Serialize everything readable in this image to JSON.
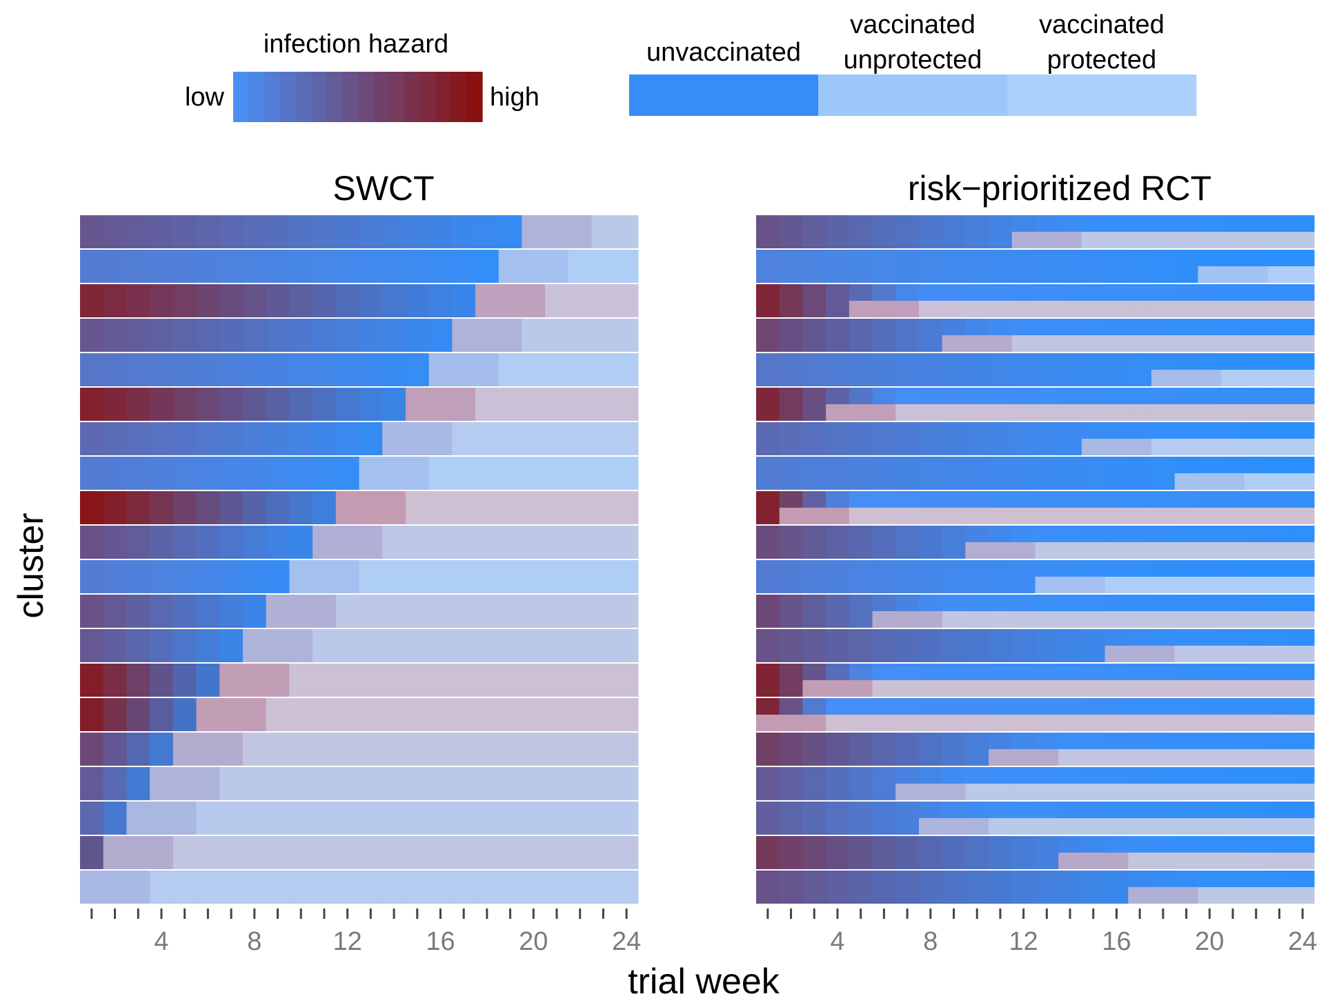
{
  "legend": {
    "hazard_title": "infection hazard",
    "hazard_low": "low",
    "hazard_high": "high",
    "status_labels": [
      [
        "unvaccinated"
      ],
      [
        "vaccinated",
        "unprotected"
      ],
      [
        "vaccinated",
        "protected"
      ]
    ]
  },
  "axis": {
    "xlabel": "trial week",
    "ylabel": "cluster"
  },
  "colors": {
    "hazard_low": "#4A8EF4",
    "hazard_high": "#8A1010",
    "unvaccinated": "#378DF7",
    "vaccinated_unprotected": "#9DC6FA",
    "vaccinated_protected": "#AAD0FB"
  },
  "chart_data": [
    {
      "type": "heatmap",
      "title": "SWCT",
      "xlabel": "trial week",
      "ylabel": "cluster",
      "xlim": [
        1,
        24
      ],
      "xticks": [
        4,
        8,
        12,
        16,
        20,
        24
      ],
      "vaccination_week_by_cluster": [
        19,
        18,
        17,
        16,
        15,
        14,
        13,
        12,
        11,
        10,
        9,
        8,
        7,
        6,
        5,
        4,
        3,
        2,
        1,
        0
      ],
      "initial_hazard_by_cluster": [
        0.45,
        0.15,
        0.85,
        0.45,
        0.2,
        0.9,
        0.3,
        0.15,
        1.0,
        0.5,
        0.15,
        0.5,
        0.45,
        0.95,
        0.95,
        0.6,
        0.45,
        0.35,
        0.6,
        0.3
      ]
    },
    {
      "type": "heatmap",
      "title": "risk−prioritized RCT",
      "xlabel": "trial week",
      "ylabel": "cluster",
      "xlim": [
        1,
        24
      ],
      "xticks": [
        4,
        8,
        12,
        16,
        20,
        24
      ],
      "vaccination_week_by_cluster": [
        11,
        19,
        4,
        8,
        17,
        3,
        14,
        18,
        1,
        9,
        12,
        5,
        15,
        2,
        0,
        10,
        6,
        7,
        13,
        16
      ],
      "initial_hazard_by_cluster": [
        0.5,
        0.1,
        0.9,
        0.6,
        0.2,
        0.9,
        0.3,
        0.15,
        1.0,
        0.55,
        0.15,
        0.6,
        0.5,
        0.95,
        1.0,
        0.65,
        0.45,
        0.4,
        0.7,
        0.5
      ]
    }
  ]
}
